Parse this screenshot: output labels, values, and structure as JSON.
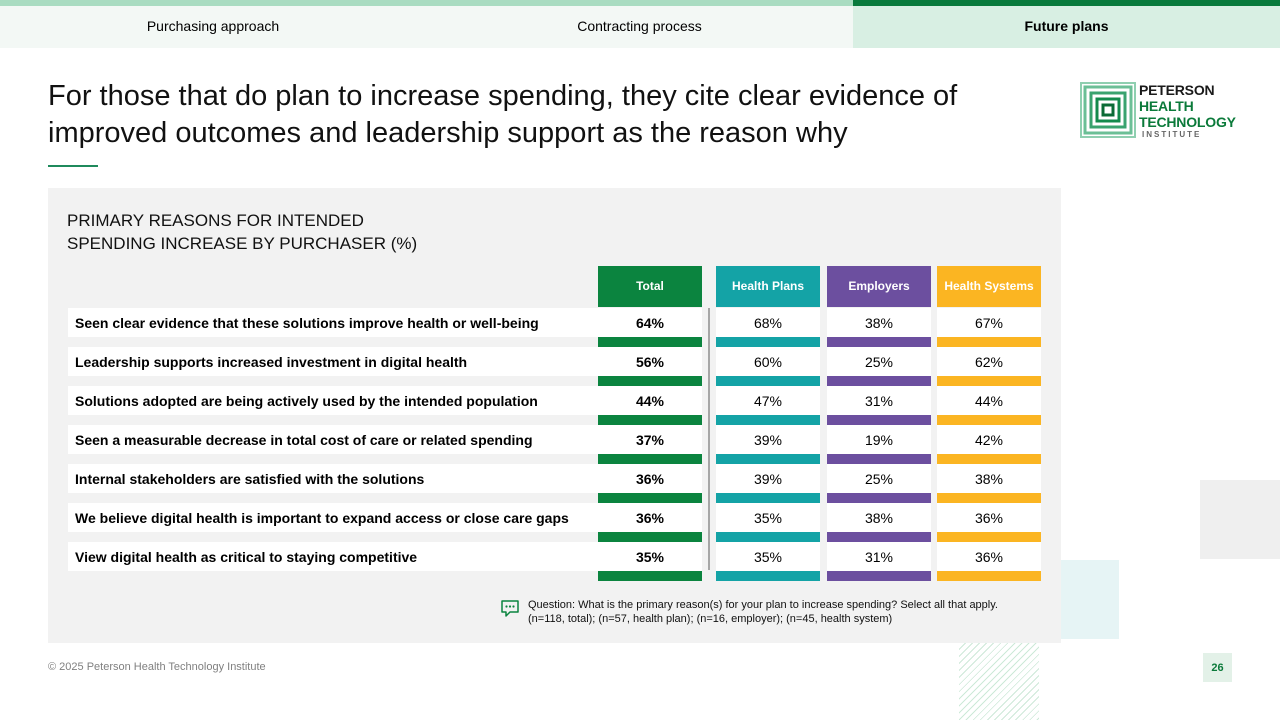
{
  "tabs": [
    {
      "label": "Purchasing approach",
      "active": false
    },
    {
      "label": "Contracting process",
      "active": false
    },
    {
      "label": "Future plans",
      "active": true
    }
  ],
  "title": "For those that do plan to increase spending, they cite clear evidence of improved outcomes and leadership support as the reason why",
  "logo": {
    "line1": "PETERSON",
    "line2": "HEALTH",
    "line3": "TECHNOLOGY",
    "line4": "INSTITUTE"
  },
  "panel": {
    "title_line1": "PRIMARY REASONS FOR INTENDED",
    "title_line2": "SPENDING INCREASE BY PURCHASER (%)"
  },
  "columns": [
    {
      "label": "Total",
      "color": "#0b843f"
    },
    {
      "label": "Health Plans",
      "color": "#14a3a6"
    },
    {
      "label": "Employers",
      "color": "#6c4f9f"
    },
    {
      "label": "Health Systems",
      "color": "#fbb522"
    }
  ],
  "rows": [
    {
      "label": "Seen clear evidence that these solutions improve health or well-being",
      "values": [
        "64%",
        "68%",
        "38%",
        "67%"
      ]
    },
    {
      "label": "Leadership supports increased investment in digital health",
      "values": [
        "56%",
        "60%",
        "25%",
        "62%"
      ]
    },
    {
      "label": "Solutions adopted are being actively used by the intended population",
      "values": [
        "44%",
        "47%",
        "31%",
        "44%"
      ]
    },
    {
      "label": "Seen a measurable decrease in total cost of care or related spending",
      "values": [
        "37%",
        "39%",
        "19%",
        "42%"
      ]
    },
    {
      "label": "Internal stakeholders are satisfied with the solutions",
      "values": [
        "36%",
        "39%",
        "25%",
        "38%"
      ]
    },
    {
      "label": "We believe digital health is important to expand access or close care gaps",
      "values": [
        "36%",
        "35%",
        "38%",
        "36%"
      ]
    },
    {
      "label": "View digital health as critical to staying competitive",
      "values": [
        "35%",
        "35%",
        "31%",
        "36%"
      ]
    }
  ],
  "question": {
    "line1": "Question: What is the primary reason(s) for your plan to increase spending? Select all that apply.",
    "line2": "(n=118, total); (n=57, health plan); (n=16, employer); (n=45, health system)"
  },
  "footer": {
    "copyright": "© 2025 Peterson Health Technology Institute",
    "page": "26"
  }
}
